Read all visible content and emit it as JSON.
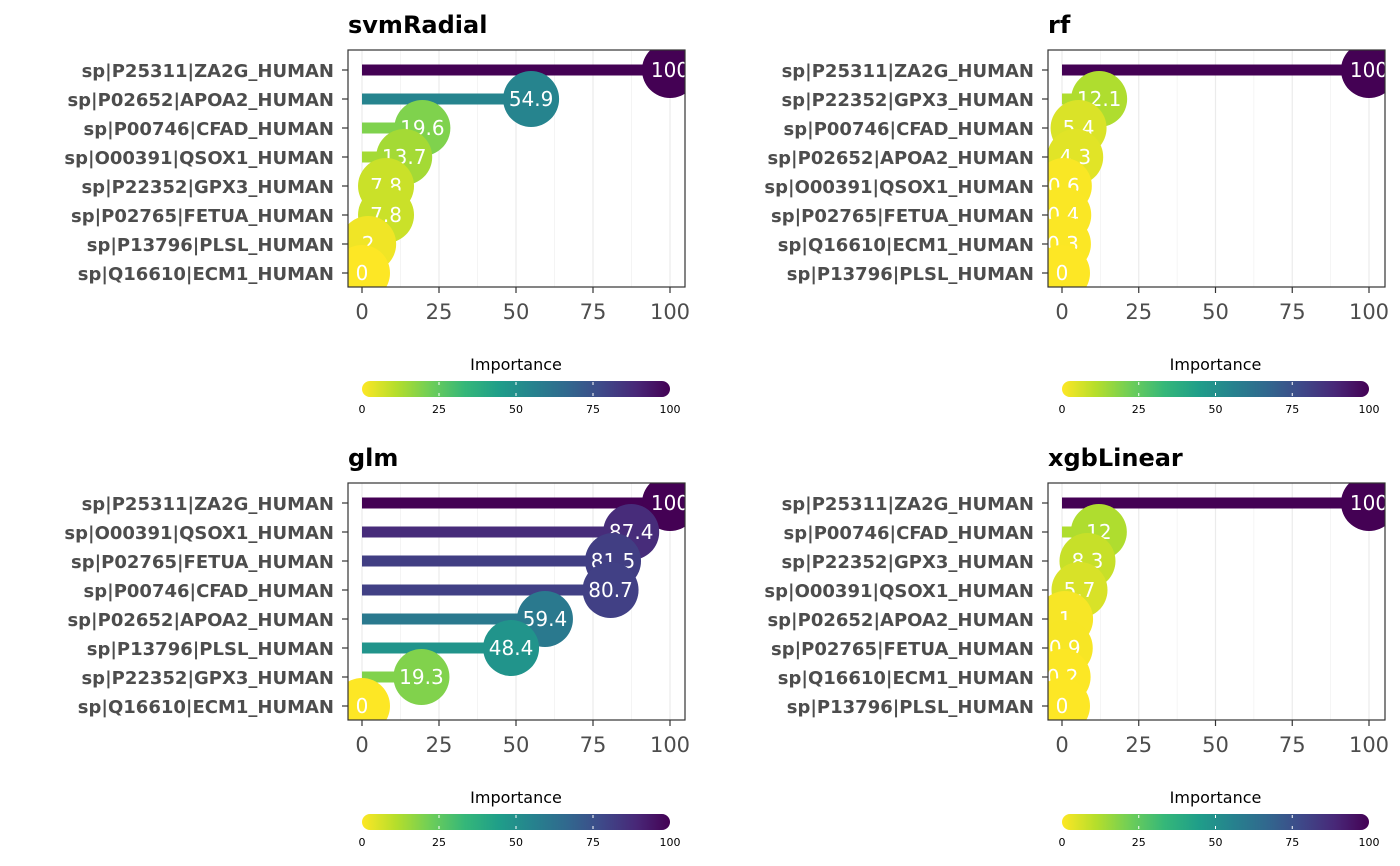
{
  "chart_data": [
    {
      "type": "lollipop",
      "title": "svmRadial",
      "categories": [
        "sp|P25311|ZA2G_HUMAN",
        "sp|P02652|APOA2_HUMAN",
        "sp|P00746|CFAD_HUMAN",
        "sp|O00391|QSOX1_HUMAN",
        "sp|P22352|GPX3_HUMAN",
        "sp|P02765|FETUA_HUMAN",
        "sp|P13796|PLSL_HUMAN",
        "sp|Q16610|ECM1_HUMAN"
      ],
      "values": [
        100,
        54.9,
        19.6,
        13.7,
        7.8,
        7.8,
        2,
        0
      ],
      "labels": [
        "100",
        "54.9",
        "19.6",
        "13.7",
        "7.8",
        "7.8",
        "2",
        "0"
      ],
      "xlim": [
        0,
        100
      ],
      "xticks": [
        "0",
        "25",
        "50",
        "75",
        "100"
      ],
      "legend": {
        "title": "Importance",
        "ticks": [
          "0",
          "25",
          "50",
          "75",
          "100"
        ],
        "position": "bottom"
      }
    },
    {
      "type": "lollipop",
      "title": "rf",
      "categories": [
        "sp|P25311|ZA2G_HUMAN",
        "sp|P22352|GPX3_HUMAN",
        "sp|P00746|CFAD_HUMAN",
        "sp|P02652|APOA2_HUMAN",
        "sp|O00391|QSOX1_HUMAN",
        "sp|P02765|FETUA_HUMAN",
        "sp|Q16610|ECM1_HUMAN",
        "sp|P13796|PLSL_HUMAN"
      ],
      "values": [
        100,
        12.1,
        5.4,
        4.3,
        0.6,
        0.4,
        0.3,
        0
      ],
      "labels": [
        "100",
        "12.1",
        "5.4",
        "4.3",
        "0.6",
        "0.4",
        "0.3",
        "0"
      ],
      "xlim": [
        0,
        100
      ],
      "xticks": [
        "0",
        "25",
        "50",
        "75",
        "100"
      ],
      "legend": {
        "title": "Importance",
        "ticks": [
          "0",
          "25",
          "50",
          "75",
          "100"
        ],
        "position": "bottom"
      }
    },
    {
      "type": "lollipop",
      "title": "glm",
      "categories": [
        "sp|P25311|ZA2G_HUMAN",
        "sp|O00391|QSOX1_HUMAN",
        "sp|P02765|FETUA_HUMAN",
        "sp|P00746|CFAD_HUMAN",
        "sp|P02652|APOA2_HUMAN",
        "sp|P13796|PLSL_HUMAN",
        "sp|P22352|GPX3_HUMAN",
        "sp|Q16610|ECM1_HUMAN"
      ],
      "values": [
        100,
        87.4,
        81.5,
        80.7,
        59.4,
        48.4,
        19.3,
        0
      ],
      "labels": [
        "100",
        "87.4",
        "81.5",
        "80.7",
        "59.4",
        "48.4",
        "19.3",
        "0"
      ],
      "xlim": [
        0,
        100
      ],
      "xticks": [
        "0",
        "25",
        "50",
        "75",
        "100"
      ],
      "legend": {
        "title": "Importance",
        "ticks": [
          "0",
          "25",
          "50",
          "75",
          "100"
        ],
        "position": "bottom"
      }
    },
    {
      "type": "lollipop",
      "title": "xgbLinear",
      "categories": [
        "sp|P25311|ZA2G_HUMAN",
        "sp|P00746|CFAD_HUMAN",
        "sp|P22352|GPX3_HUMAN",
        "sp|O00391|QSOX1_HUMAN",
        "sp|P02652|APOA2_HUMAN",
        "sp|P02765|FETUA_HUMAN",
        "sp|Q16610|ECM1_HUMAN",
        "sp|P13796|PLSL_HUMAN"
      ],
      "values": [
        100,
        12,
        8.3,
        5.7,
        1,
        0.9,
        0.2,
        0
      ],
      "labels": [
        "100",
        "12",
        "8.3",
        "5.7",
        "1",
        "0.9",
        "0.2",
        "0"
      ],
      "xlim": [
        0,
        100
      ],
      "xticks": [
        "0",
        "25",
        "50",
        "75",
        "100"
      ],
      "legend": {
        "title": "Importance",
        "ticks": [
          "0",
          "25",
          "50",
          "75",
          "100"
        ],
        "position": "bottom"
      }
    }
  ],
  "colors": {
    "colormap": "viridis-reversed",
    "stops": [
      "#fde725",
      "#b5de2b",
      "#6ece58",
      "#35b779",
      "#1f9e89",
      "#26828e",
      "#31688e",
      "#3e4989",
      "#482878",
      "#440154"
    ],
    "panel_border": "#333333",
    "gridline": "#ebebeb",
    "axis_text": "#4d4d4d"
  }
}
